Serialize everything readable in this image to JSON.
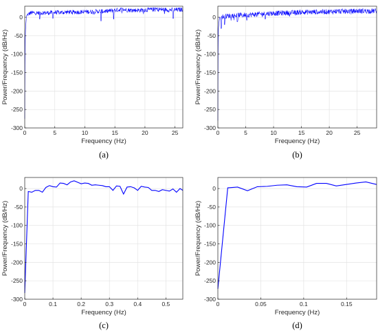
{
  "chart_data": [
    {
      "type": "line",
      "caption": "(a)",
      "xlabel": "Frequency (Hz)",
      "ylabel": "Power/Frequency (dB/Hz)",
      "xlim": [
        0,
        26.3
      ],
      "ylim": [
        -300,
        30
      ],
      "xticks": [
        0,
        5,
        10,
        15,
        20,
        25
      ],
      "yticks": [
        -300,
        -250,
        -200,
        -150,
        -100,
        -50,
        0
      ],
      "grid": true,
      "color": "#0000ff",
      "series": [
        {
          "style": "dense-noise",
          "x": [
            0,
            0.05,
            0.1,
            0.3,
            1,
            2,
            3,
            4,
            5,
            6,
            7,
            8,
            9,
            10,
            11,
            12,
            13,
            14,
            15,
            16,
            17,
            18,
            19,
            20,
            21,
            22,
            23,
            24,
            25,
            26.3
          ],
          "y": [
            -275,
            -120,
            -40,
            5,
            12,
            12,
            12,
            12,
            13,
            13,
            14,
            14,
            14,
            15,
            15,
            16,
            16,
            17,
            19,
            21,
            20,
            19,
            19,
            20,
            21,
            22,
            21,
            20,
            20,
            21
          ],
          "noise_amplitude": 6,
          "dips": [
            [
              2.5,
              -5
            ],
            [
              4.7,
              -3
            ],
            [
              12.7,
              -10
            ],
            [
              14.8,
              -5
            ],
            [
              24.7,
              -3
            ]
          ]
        }
      ]
    },
    {
      "type": "line",
      "caption": "(b)",
      "xlabel": "Frequency (Hz)",
      "ylabel": "Power/Frequency (dB/Hz)",
      "xlim": [
        0,
        28.5
      ],
      "ylim": [
        -300,
        30
      ],
      "xticks": [
        0,
        5,
        10,
        15,
        20,
        25
      ],
      "yticks": [
        -300,
        -250,
        -200,
        -150,
        -100,
        -50,
        0
      ],
      "grid": true,
      "color": "#0000ff",
      "series": [
        {
          "style": "dense-noise",
          "x": [
            0,
            0.05,
            0.1,
            0.3,
            1,
            2,
            3,
            4,
            5,
            6,
            7,
            8,
            9,
            10,
            11,
            12,
            13,
            14,
            15,
            16,
            17,
            18,
            19,
            20,
            21,
            22,
            23,
            24,
            25,
            26,
            27,
            28.5
          ],
          "y": [
            -280,
            -90,
            -30,
            0,
            2,
            4,
            5,
            6,
            6,
            7,
            8,
            9,
            10,
            11,
            11,
            12,
            12,
            13,
            14,
            14,
            14,
            15,
            15,
            15,
            16,
            16,
            16,
            16,
            17,
            17,
            17,
            17
          ],
          "noise_amplitude": 7,
          "dips": [
            [
              0.6,
              -30
            ],
            [
              1.2,
              -20
            ],
            [
              3.5,
              -12
            ],
            [
              5.2,
              -8
            ],
            [
              8.5,
              -5
            ]
          ]
        }
      ]
    },
    {
      "type": "line",
      "caption": "(c)",
      "xlabel": "Frequency (Hz)",
      "ylabel": "Power/Frequency (dB/Hz)",
      "xlim": [
        0,
        0.56
      ],
      "ylim": [
        -300,
        30
      ],
      "xticks": [
        0,
        0.1,
        0.2,
        0.3,
        0.4,
        0.5
      ],
      "yticks": [
        -300,
        -250,
        -200,
        -150,
        -100,
        -50,
        0
      ],
      "grid": true,
      "color": "#0000ff",
      "series": [
        {
          "style": "line",
          "x": [
            0,
            0.0125,
            0.025,
            0.0375,
            0.05,
            0.0625,
            0.075,
            0.0875,
            0.1,
            0.1125,
            0.125,
            0.1375,
            0.15,
            0.1625,
            0.175,
            0.1875,
            0.2,
            0.2125,
            0.225,
            0.2375,
            0.25,
            0.2625,
            0.275,
            0.2875,
            0.3,
            0.3125,
            0.325,
            0.3375,
            0.35,
            0.3625,
            0.375,
            0.3875,
            0.4,
            0.4125,
            0.425,
            0.4375,
            0.45,
            0.4625,
            0.475,
            0.4875,
            0.5,
            0.5125,
            0.525,
            0.5375,
            0.55,
            0.56
          ],
          "y": [
            -283,
            -8,
            -10,
            -5,
            -5,
            -10,
            3,
            8,
            5,
            4,
            15,
            14,
            10,
            18,
            21,
            17,
            13,
            15,
            14,
            9,
            10,
            9,
            8,
            5,
            5,
            -5,
            7,
            6,
            -15,
            4,
            5,
            2,
            -5,
            6,
            4,
            3,
            -5,
            -5,
            -8,
            -3,
            -5,
            -7,
            -1,
            -10,
            0,
            -5
          ]
        }
      ]
    },
    {
      "type": "line",
      "caption": "(d)",
      "xlabel": "Frequency (Hz)",
      "ylabel": "Power/Frequency (dB/Hz)",
      "xlim": [
        0,
        0.185
      ],
      "ylim": [
        -300,
        30
      ],
      "xticks": [
        0,
        0.05,
        0.1,
        0.15
      ],
      "yticks": [
        -300,
        -250,
        -200,
        -150,
        -100,
        -50,
        0
      ],
      "grid": true,
      "color": "#0000ff",
      "series": [
        {
          "style": "line",
          "x": [
            0,
            0.0115,
            0.023,
            0.0345,
            0.046,
            0.0575,
            0.069,
            0.0805,
            0.092,
            0.1035,
            0.115,
            0.1265,
            0.138,
            0.1495,
            0.161,
            0.1725,
            0.185
          ],
          "y": [
            -272,
            2,
            4,
            -6,
            5,
            6,
            9,
            10,
            5,
            4,
            14,
            14,
            7,
            11,
            15,
            18,
            11
          ]
        }
      ]
    }
  ]
}
